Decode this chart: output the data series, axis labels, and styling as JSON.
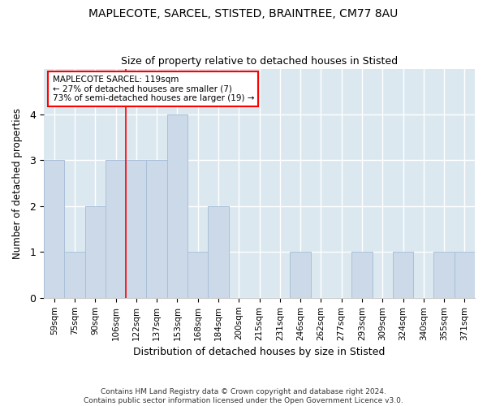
{
  "title1": "MAPLECOTE, SARCEL, STISTED, BRAINTREE, CM77 8AU",
  "title2": "Size of property relative to detached houses in Stisted",
  "xlabel": "Distribution of detached houses by size in Stisted",
  "ylabel": "Number of detached properties",
  "categories": [
    "59sqm",
    "75sqm",
    "90sqm",
    "106sqm",
    "122sqm",
    "137sqm",
    "153sqm",
    "168sqm",
    "184sqm",
    "200sqm",
    "215sqm",
    "231sqm",
    "246sqm",
    "262sqm",
    "277sqm",
    "293sqm",
    "309sqm",
    "324sqm",
    "340sqm",
    "355sqm",
    "371sqm"
  ],
  "values": [
    3,
    1,
    2,
    3,
    3,
    3,
    4,
    1,
    2,
    0,
    0,
    0,
    1,
    0,
    0,
    1,
    0,
    1,
    0,
    1,
    1
  ],
  "bar_color": "#ccd9e8",
  "bar_edge_color": "#aabfd8",
  "red_line_index": 3.5,
  "annotation_text": "MAPLECOTE SARCEL: 119sqm\n← 27% of detached houses are smaller (7)\n73% of semi-detached houses are larger (19) →",
  "annotation_box_color": "white",
  "annotation_box_edge_color": "red",
  "ylim": [
    0,
    5
  ],
  "yticks": [
    0,
    1,
    2,
    3,
    4
  ],
  "footer": "Contains HM Land Registry data © Crown copyright and database right 2024.\nContains public sector information licensed under the Open Government Licence v3.0.",
  "bg_color": "#ffffff",
  "plot_bg_color": "#dce8f0",
  "grid_color": "#ffffff",
  "title1_fontsize": 10,
  "title2_fontsize": 9
}
